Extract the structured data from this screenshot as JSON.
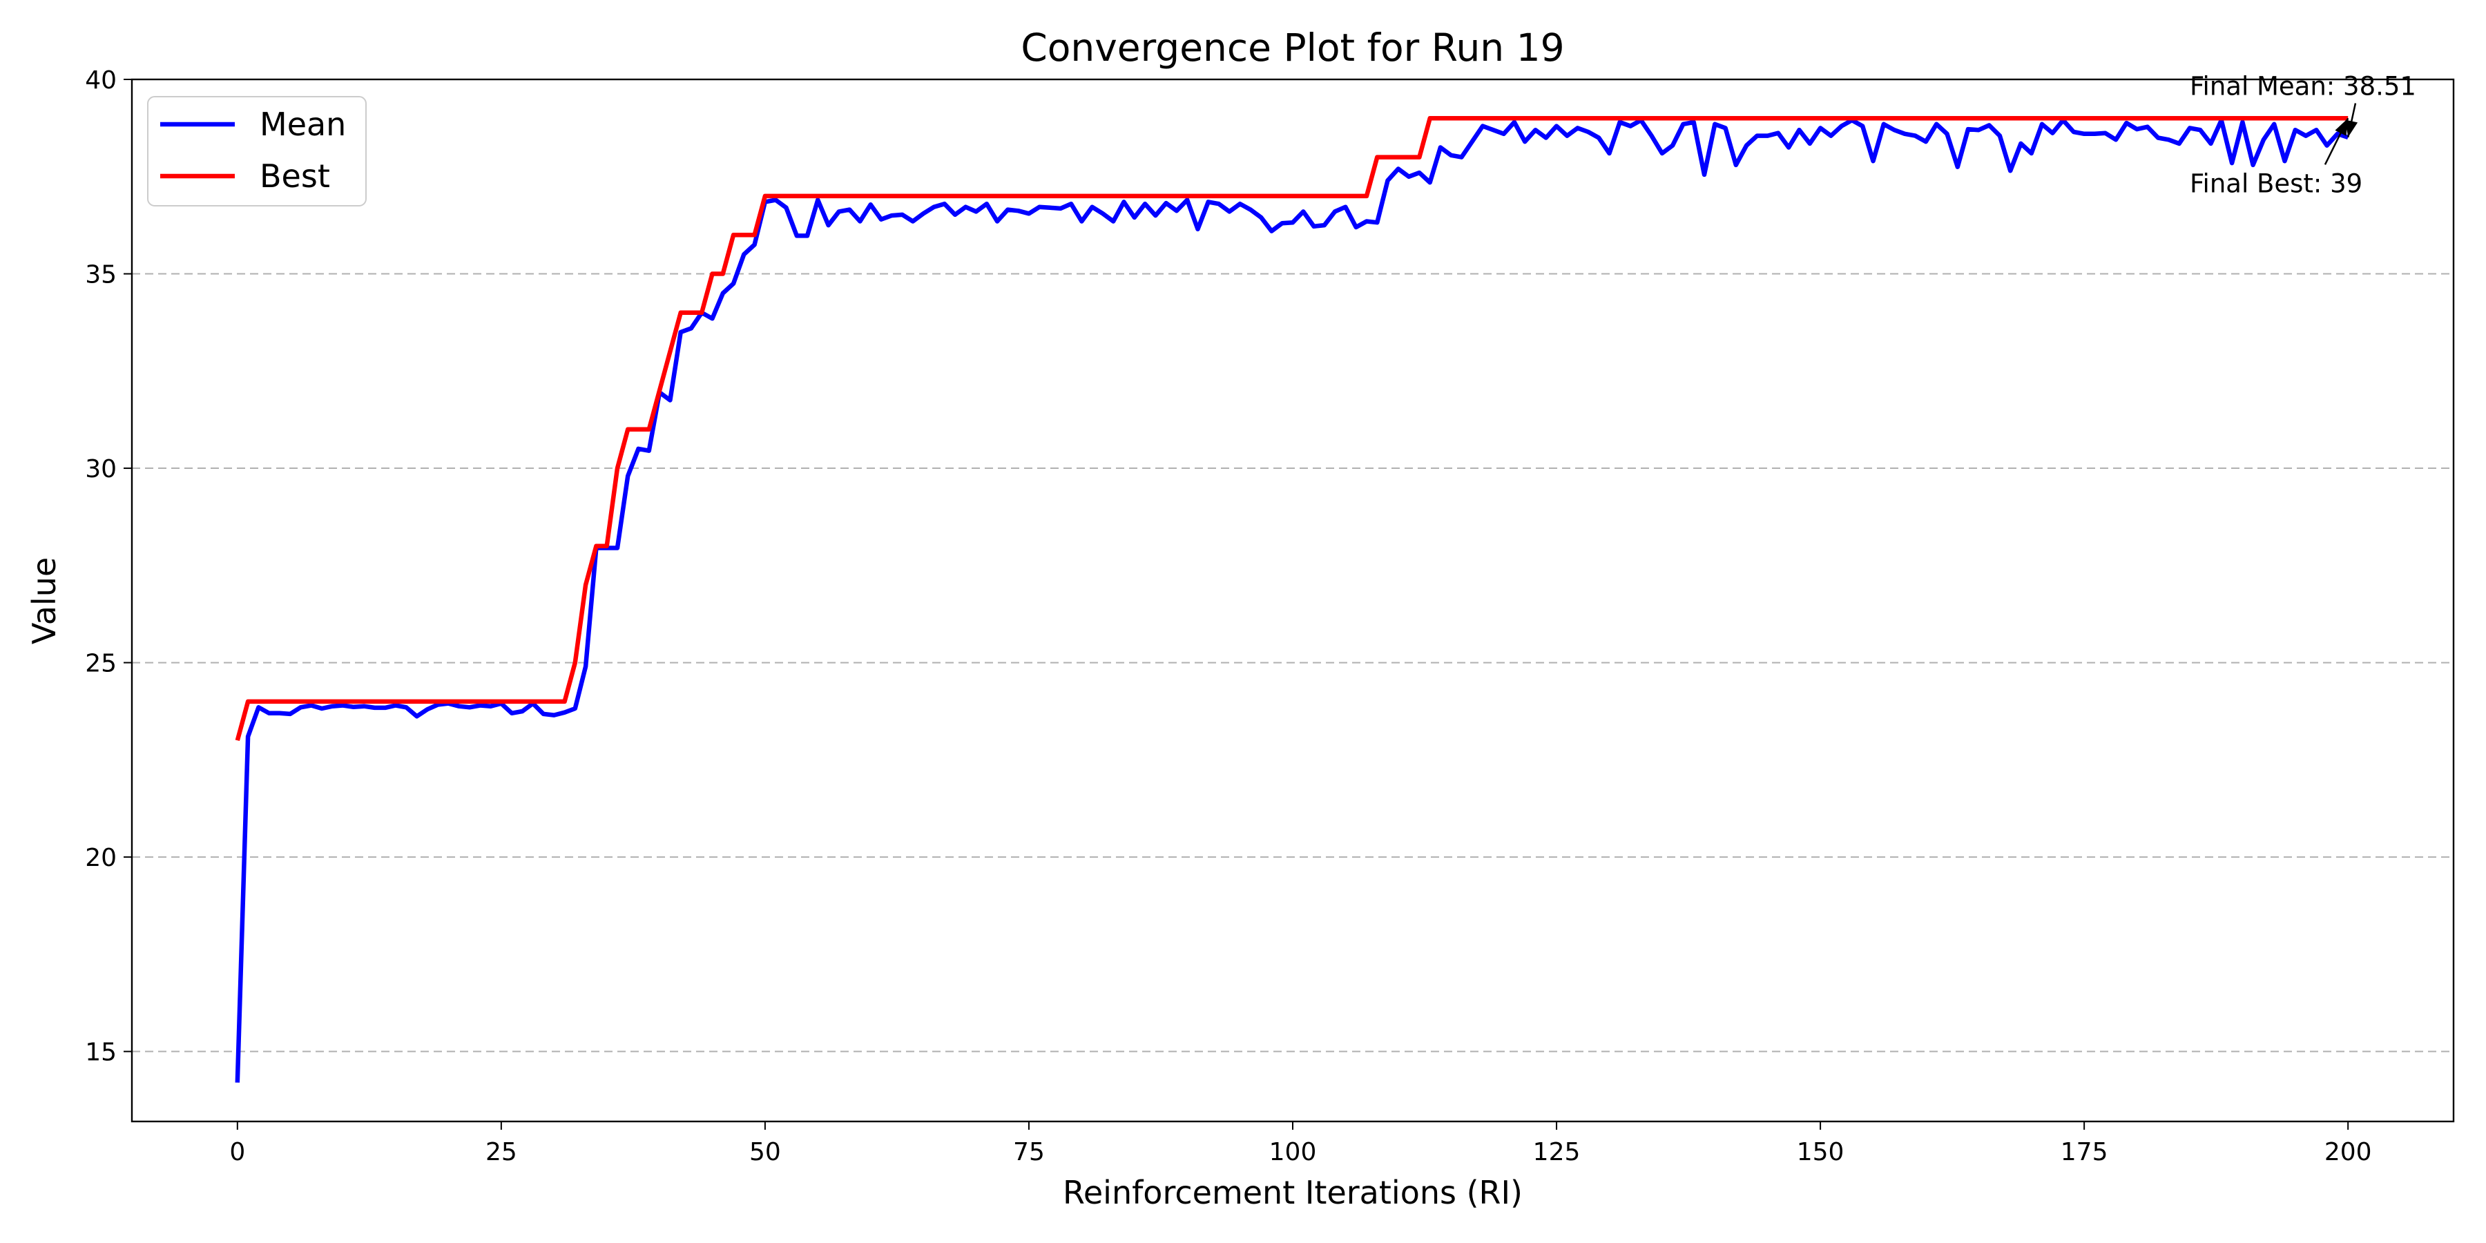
{
  "chart_data": {
    "type": "line",
    "title": "Convergence Plot for Run 19",
    "xlabel": "Reinforcement Iterations (RI)",
    "ylabel": "Value",
    "xlim": [
      -10,
      210
    ],
    "ylim": [
      13.2,
      40
    ],
    "xticks": [
      0,
      25,
      50,
      75,
      100,
      125,
      150,
      175,
      200
    ],
    "yticks": [
      15,
      20,
      25,
      30,
      35,
      40
    ],
    "grid": "horizontal-dashed",
    "legend_position": "top-left",
    "series": [
      {
        "name": "Mean",
        "color": "#0000ff",
        "x_start": 0,
        "x_step": 1,
        "values": [
          14.2,
          23.1,
          23.85,
          23.7,
          23.7,
          23.68,
          23.85,
          23.9,
          23.82,
          23.88,
          23.9,
          23.86,
          23.88,
          23.84,
          23.84,
          23.9,
          23.85,
          23.62,
          23.8,
          23.92,
          23.95,
          23.88,
          23.85,
          23.9,
          23.88,
          23.95,
          23.7,
          23.75,
          23.95,
          23.68,
          23.65,
          23.72,
          23.82,
          24.9,
          27.95,
          27.95,
          27.95,
          29.8,
          30.5,
          30.45,
          31.95,
          31.75,
          33.5,
          33.6,
          34.0,
          33.85,
          34.5,
          34.75,
          35.5,
          35.75,
          36.85,
          36.9,
          36.7,
          35.98,
          35.98,
          36.9,
          36.25,
          36.6,
          36.65,
          36.35,
          36.78,
          36.4,
          36.5,
          36.52,
          36.35,
          36.55,
          36.72,
          36.8,
          36.52,
          36.72,
          36.6,
          36.8,
          36.35,
          36.65,
          36.62,
          36.55,
          36.72,
          36.7,
          36.68,
          36.8,
          36.35,
          36.72,
          36.55,
          36.35,
          36.85,
          36.45,
          36.8,
          36.5,
          36.82,
          36.62,
          36.9,
          36.15,
          36.85,
          36.8,
          36.6,
          36.8,
          36.65,
          36.45,
          36.1,
          36.3,
          36.32,
          36.6,
          36.22,
          36.25,
          36.6,
          36.72,
          36.2,
          36.35,
          36.32,
          37.4,
          37.7,
          37.5,
          37.6,
          37.35,
          38.25,
          38.05,
          38.0,
          38.4,
          38.8,
          38.7,
          38.6,
          38.9,
          38.4,
          38.7,
          38.5,
          38.8,
          38.55,
          38.75,
          38.65,
          38.5,
          38.1,
          38.9,
          38.8,
          38.95,
          38.55,
          38.1,
          38.3,
          38.85,
          38.9,
          37.55,
          38.85,
          38.75,
          37.8,
          38.3,
          38.55,
          38.55,
          38.62,
          38.25,
          38.7,
          38.35,
          38.75,
          38.55,
          38.8,
          38.95,
          38.8,
          37.9,
          38.85,
          38.7,
          38.6,
          38.55,
          38.4,
          38.85,
          38.6,
          37.75,
          38.72,
          38.7,
          38.82,
          38.55,
          37.65,
          38.35,
          38.1,
          38.85,
          38.62,
          38.95,
          38.65,
          38.6,
          38.6,
          38.62,
          38.45,
          38.88,
          38.72,
          38.78,
          38.5,
          38.45,
          38.35,
          38.75,
          38.7,
          38.35,
          38.95,
          37.85,
          38.9,
          37.8,
          38.45,
          38.85,
          37.9,
          38.7,
          38.55,
          38.7,
          38.3,
          38.6,
          38.51
        ]
      },
      {
        "name": "Best",
        "color": "#ff0000",
        "points": [
          [
            0,
            23
          ],
          [
            1,
            24
          ],
          [
            31,
            24
          ],
          [
            32,
            25
          ],
          [
            33,
            27
          ],
          [
            34,
            28
          ],
          [
            35,
            28
          ],
          [
            36,
            30
          ],
          [
            37,
            31
          ],
          [
            39,
            31
          ],
          [
            40,
            32
          ],
          [
            41,
            33
          ],
          [
            42,
            34
          ],
          [
            44,
            34
          ],
          [
            45,
            35
          ],
          [
            46,
            35
          ],
          [
            47,
            36
          ],
          [
            49,
            36
          ],
          [
            50,
            37
          ],
          [
            107,
            37
          ],
          [
            108,
            38
          ],
          [
            112,
            38
          ],
          [
            113,
            39
          ],
          [
            200,
            39
          ]
        ]
      }
    ],
    "annotations": [
      {
        "text": "Final Mean: 38.51",
        "target": [
          200,
          38.51
        ],
        "text_at": [
          185,
          39.6
        ]
      },
      {
        "text": "Final Best: 39",
        "target": [
          200,
          39
        ],
        "text_at": [
          185,
          37.1
        ]
      }
    ]
  }
}
